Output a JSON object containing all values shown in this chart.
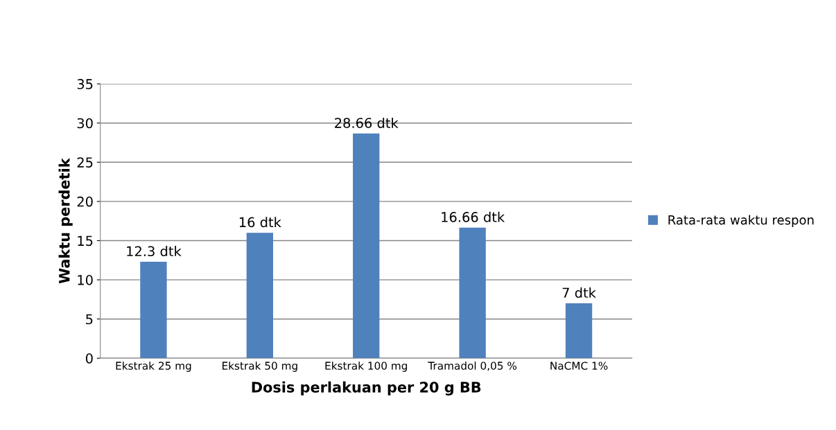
{
  "chart_data": {
    "type": "bar",
    "xlabel": "Dosis perlakuan per 20 g BB",
    "ylabel": "Waktu perdetik",
    "categories": [
      "Ekstrak 25 mg",
      "Ekstrak 50 mg",
      "Ekstrak 100 mg",
      "Tramadol 0,05 %",
      "NaCMC 1%"
    ],
    "series": [
      {
        "name": "Rata-rata waktu respon",
        "color": "#4f81bd",
        "values": [
          12.3,
          16,
          28.66,
          16.66,
          7
        ],
        "value_labels": [
          "12.3 dtk",
          "16 dtk",
          "28.66 dtk",
          "16.66 dtk",
          "7 dtk"
        ]
      }
    ],
    "ylim": [
      0,
      35
    ],
    "yticks": [
      0,
      5,
      10,
      15,
      20,
      25,
      30,
      35
    ],
    "grid": "y",
    "legend": "right"
  }
}
